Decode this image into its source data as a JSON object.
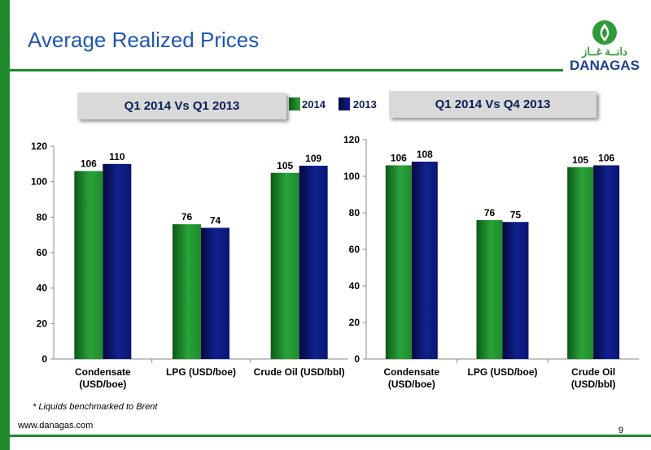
{
  "page": {
    "title": "Average Realized Prices",
    "footnote": "* Liquids benchmarked to Brent",
    "website": "www.danagas.com",
    "page_number": "9",
    "accent_green": "#1e8a2c",
    "title_color": "#1f56b0"
  },
  "logo": {
    "arabic_text": "دانــة غــاز",
    "latin_text": "DANAGAS",
    "icon": "flame-drop-logo-icon"
  },
  "legend": {
    "items": [
      {
        "label": "2014",
        "color": "#1e8a2c"
      },
      {
        "label": "2013",
        "color": "#0a1570"
      }
    ]
  },
  "chart_data": [
    {
      "type": "bar",
      "title": "Q1 2014 Vs Q1 2013",
      "categories": [
        "Condensate (USD/boe)",
        "LPG (USD/boe)",
        "Crude Oil (USD/bbl)"
      ],
      "category_lines": [
        [
          "Condensate",
          "(USD/boe)"
        ],
        [
          "LPG (USD/boe)"
        ],
        [
          "Crude Oil (USD/bbl)"
        ]
      ],
      "series": [
        {
          "name": "2014",
          "color": "#1e8a2c",
          "values": [
            106,
            76,
            105
          ]
        },
        {
          "name": "2013",
          "color": "#0a1570",
          "values": [
            110,
            74,
            109
          ]
        }
      ],
      "ylim": [
        0,
        120
      ],
      "yticks": [
        0,
        20,
        40,
        60,
        80,
        100,
        120
      ],
      "grid": false,
      "legend_position": "top"
    },
    {
      "type": "bar",
      "title": "Q1 2014 Vs Q4 2013",
      "categories": [
        "Condensate (USD/boe)",
        "LPG (USD/boe)",
        "Crude Oil (USD/bbl)"
      ],
      "category_lines": [
        [
          "Condensate",
          "(USD/boe)"
        ],
        [
          "LPG (USD/boe)"
        ],
        [
          "Crude Oil",
          "(USD/bbl)"
        ]
      ],
      "series": [
        {
          "name": "Q1 2014",
          "color": "#1e8a2c",
          "values": [
            106,
            76,
            105
          ]
        },
        {
          "name": "Q4 2013",
          "color": "#0a1570",
          "values": [
            108,
            75,
            106
          ]
        }
      ],
      "ylim": [
        0,
        120
      ],
      "yticks": [
        0,
        20,
        40,
        60,
        80,
        100,
        120
      ],
      "grid": false
    }
  ]
}
